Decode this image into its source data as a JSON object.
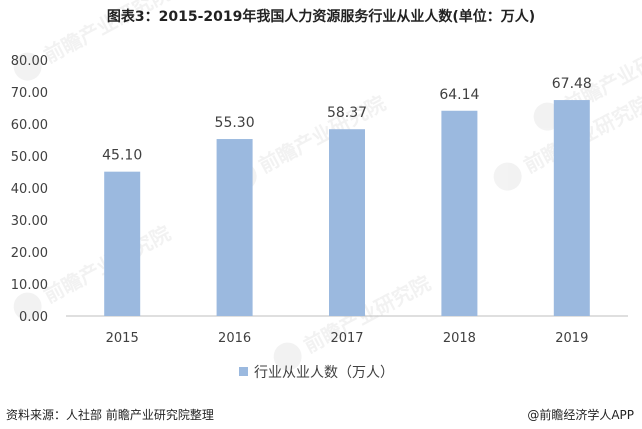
{
  "title": "图表3：2015-2019年我国人力资源服务行业从业人数(单位：万人)",
  "source": "资料来源：人社部 前瞻产业研究院整理",
  "brand": "@前瞻经济学人APP",
  "watermark": "前瞻产业研究院",
  "colors": {
    "bar": "#9bb9df",
    "axis": "#bfbfbf",
    "text": "#404040"
  },
  "chart_data": {
    "type": "bar",
    "categories": [
      "2015",
      "2016",
      "2017",
      "2018",
      "2019"
    ],
    "series": [
      {
        "name": "行业从业人数（万人）",
        "values": [
          45.1,
          55.3,
          58.37,
          64.14,
          67.48
        ]
      }
    ],
    "value_labels": [
      "45.10",
      "55.30",
      "58.37",
      "64.14",
      "67.48"
    ],
    "yticks": [
      "0.00",
      "10.00",
      "20.00",
      "30.00",
      "40.00",
      "50.00",
      "60.00",
      "70.00",
      "80.00"
    ],
    "ylim": [
      0,
      80
    ],
    "grid": false,
    "legend": "bottom"
  }
}
